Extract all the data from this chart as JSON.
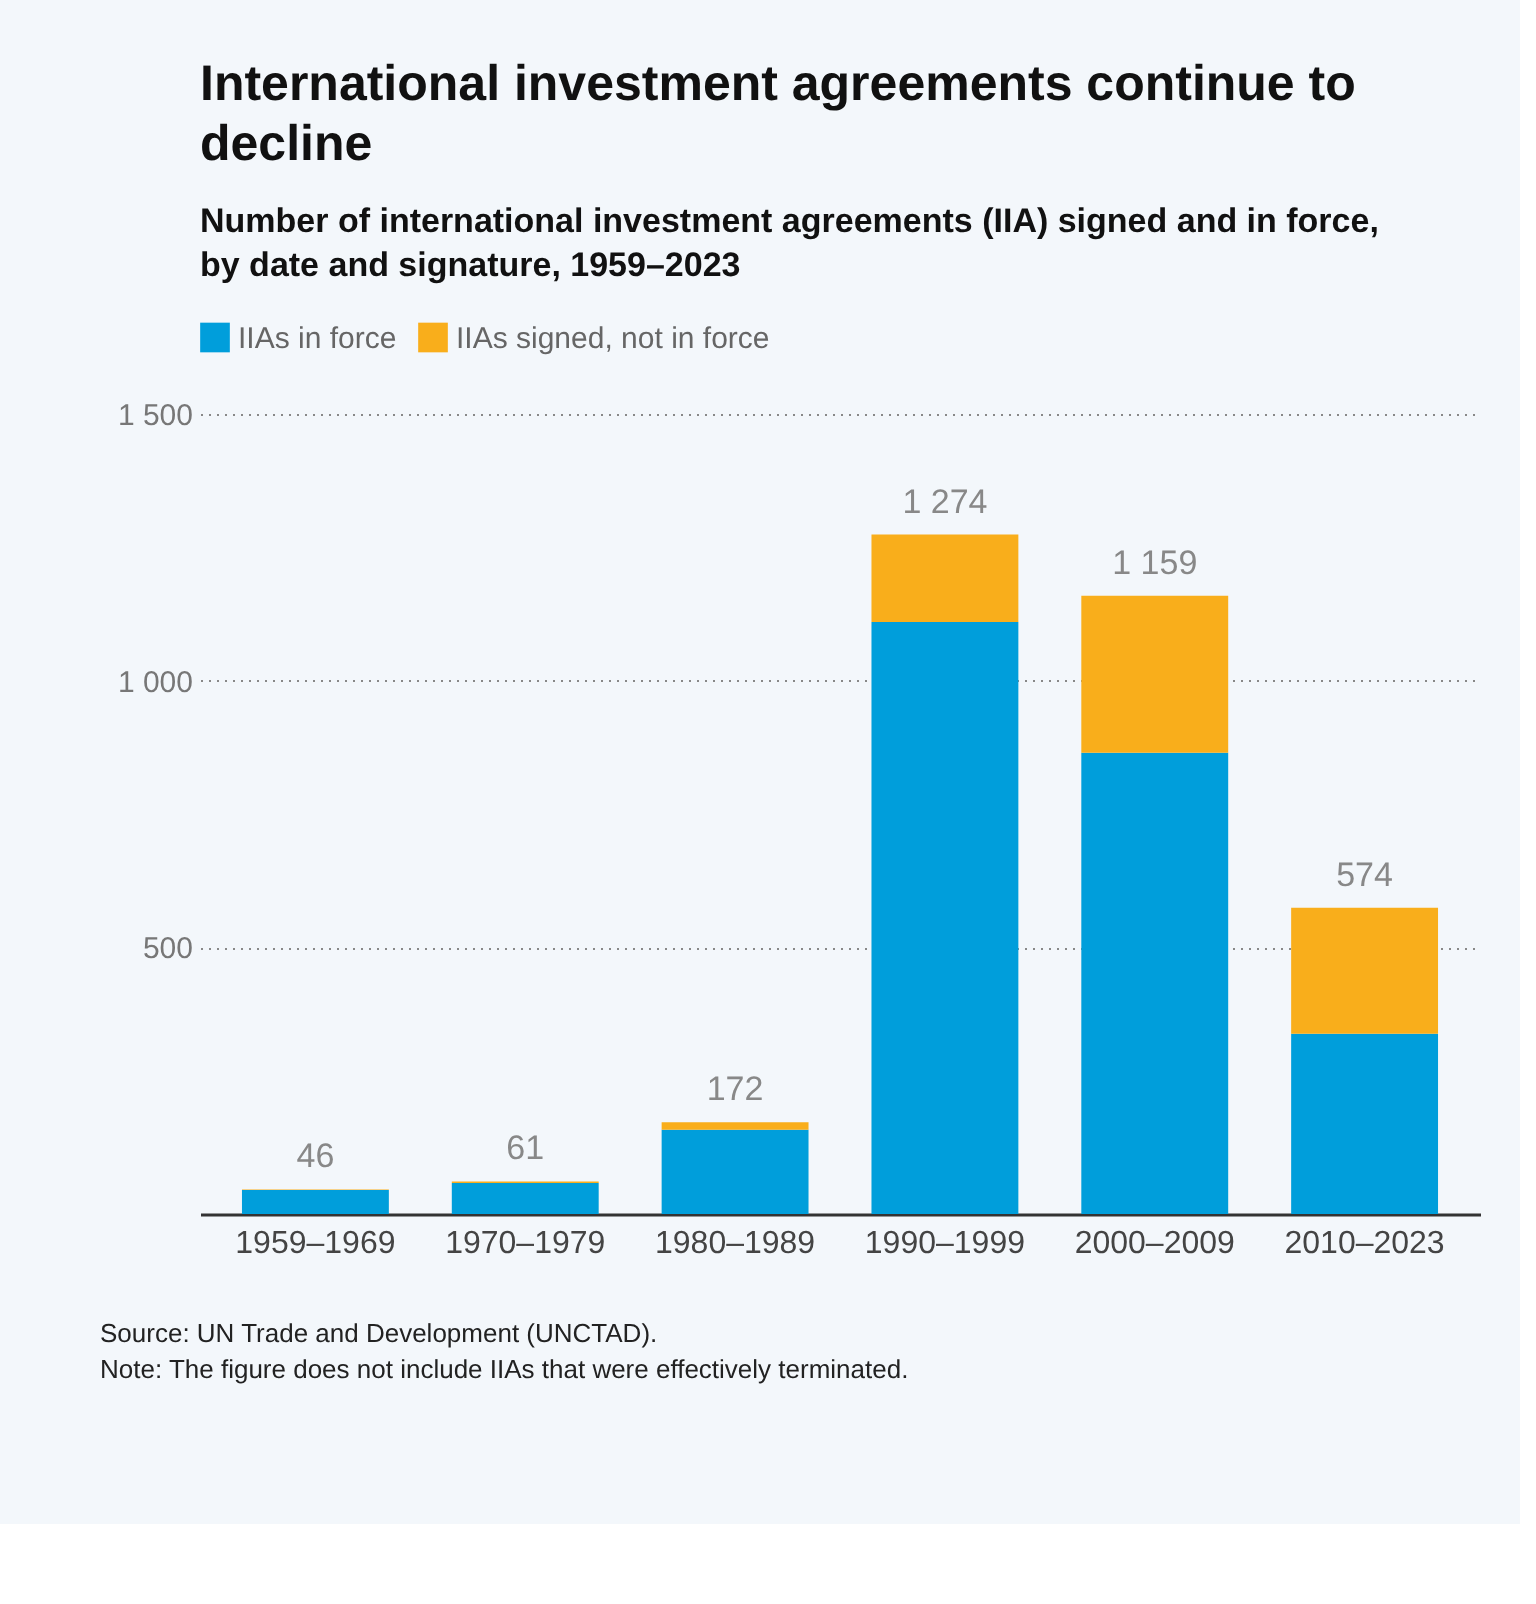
{
  "chart_data": {
    "type": "bar",
    "title": "International investment agreements continue to decline",
    "subtitle": "Number of international investment agreements (IIA) signed and in force, by date and signature, 1959–2023",
    "categories": [
      "1959–1969",
      "1970–1979",
      "1980–1989",
      "1990–1999",
      "2000–2009",
      "2010–2023"
    ],
    "stacked": true,
    "series": [
      {
        "name": "IIAs in force",
        "color": "#009edb",
        "values": [
          45,
          58,
          158,
          1110,
          865,
          338
        ]
      },
      {
        "name": "IIAs signed, not in force",
        "color": "#f9ae1b",
        "values": [
          1,
          3,
          14,
          164,
          294,
          236
        ]
      }
    ],
    "totals": [
      "46",
      "61",
      "172",
      "1 274",
      "1 159",
      "574"
    ],
    "ylim": [
      0,
      1500
    ],
    "yticks": [
      {
        "value": 500,
        "label": "500"
      },
      {
        "value": 1000,
        "label": "1 000"
      },
      {
        "value": 1500,
        "label": "1 500"
      }
    ],
    "grid": "y",
    "legend": "top left",
    "annotations": [
      "Source: UN Trade and Development (UNCTAD).",
      "Note: The figure does not include IIAs that were effectively terminated."
    ]
  }
}
